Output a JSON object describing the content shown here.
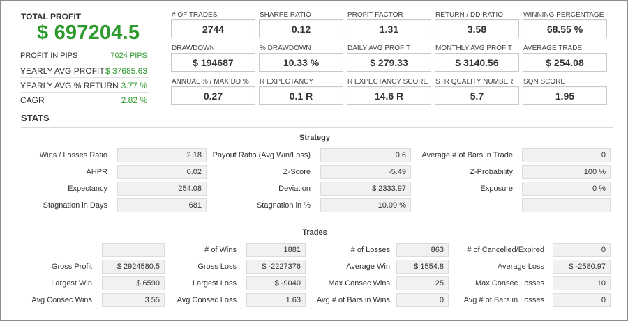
{
  "summary": {
    "total_profit_label": "TOTAL PROFIT",
    "total_profit_value": "$ 697204.5",
    "rows": [
      {
        "label": "PROFIT IN PIPS",
        "value": "7024 PIPS"
      },
      {
        "label": "YEARLY AVG PROFIT",
        "value": "$ 37685.63"
      },
      {
        "label": "YEARLY AVG % RETURN",
        "value": "3.77 %"
      },
      {
        "label": "CAGR",
        "value": "2.82 %"
      }
    ]
  },
  "metrics": [
    {
      "label": "# OF TRADES",
      "value": "2744"
    },
    {
      "label": "SHARPE RATIO",
      "value": "0.12"
    },
    {
      "label": "PROFIT FACTOR",
      "value": "1.31"
    },
    {
      "label": "RETURN / DD RATIO",
      "value": "3.58"
    },
    {
      "label": "WINNING PERCENTAGE",
      "value": "68.55 %"
    },
    {
      "label": "DRAWDOWN",
      "value": "$ 194687"
    },
    {
      "label": "% DRAWDOWN",
      "value": "10.33 %"
    },
    {
      "label": "DAILY AVG PROFIT",
      "value": "$ 279.33"
    },
    {
      "label": "MONTHLY AVG PROFIT",
      "value": "$ 3140.56"
    },
    {
      "label": "AVERAGE TRADE",
      "value": "$ 254.08"
    },
    {
      "label": "ANNUAL % / MAX DD %",
      "value": "0.27"
    },
    {
      "label": "R EXPECTANCY",
      "value": "0.1 R"
    },
    {
      "label": "R EXPECTANCY SCORE",
      "value": "14.6 R"
    },
    {
      "label": "STR QUALITY NUMBER",
      "value": "5.7"
    },
    {
      "label": "SQN SCORE",
      "value": "1.95"
    }
  ],
  "stats_title": "STATS",
  "strategy": {
    "title": "Strategy",
    "rows": [
      [
        {
          "label": "Wins / Losses Ratio",
          "value": "2.18"
        },
        {
          "label": "Payout Ratio (Avg Win/Loss)",
          "value": "0.6"
        },
        {
          "label": "Average # of Bars in Trade",
          "value": "0"
        }
      ],
      [
        {
          "label": "AHPR",
          "value": "0.02"
        },
        {
          "label": "Z-Score",
          "value": "-5.49"
        },
        {
          "label": "Z-Probability",
          "value": "100 %"
        }
      ],
      [
        {
          "label": "Expectancy",
          "value": "254.08"
        },
        {
          "label": "Deviation",
          "value": "$ 2333.97"
        },
        {
          "label": "Exposure",
          "value": "0 %"
        }
      ],
      [
        {
          "label": "Stagnation in Days",
          "value": "681"
        },
        {
          "label": "Stagnation in %",
          "value": "10.09 %"
        },
        {
          "label": "",
          "value": ""
        }
      ]
    ]
  },
  "trades": {
    "title": "Trades",
    "rows": [
      [
        {
          "label": "",
          "value": ""
        },
        {
          "label": "# of Wins",
          "value": "1881"
        },
        {
          "label": "# of Losses",
          "value": "863"
        },
        {
          "label": "# of Cancelled/Expired",
          "value": "0"
        }
      ],
      [
        {
          "label": "Gross Profit",
          "value": "$ 2924580.5"
        },
        {
          "label": "Gross Loss",
          "value": "$ -2227376"
        },
        {
          "label": "Average Win",
          "value": "$ 1554.8"
        },
        {
          "label": "Average Loss",
          "value": "$ -2580.97"
        }
      ],
      [
        {
          "label": "Largest Win",
          "value": "$ 6590"
        },
        {
          "label": "Largest Loss",
          "value": "$ -9040"
        },
        {
          "label": "Max Consec Wins",
          "value": "25"
        },
        {
          "label": "Max Consec Losses",
          "value": "10"
        }
      ],
      [
        {
          "label": "Avg Consec Wins",
          "value": "3.55"
        },
        {
          "label": "Avg Consec Loss",
          "value": "1.63"
        },
        {
          "label": "Avg # of Bars in Wins",
          "value": "0"
        },
        {
          "label": "Avg # of Bars in Losses",
          "value": "0"
        }
      ]
    ]
  },
  "colors": {
    "profit_green": "#2e9a2e"
  }
}
